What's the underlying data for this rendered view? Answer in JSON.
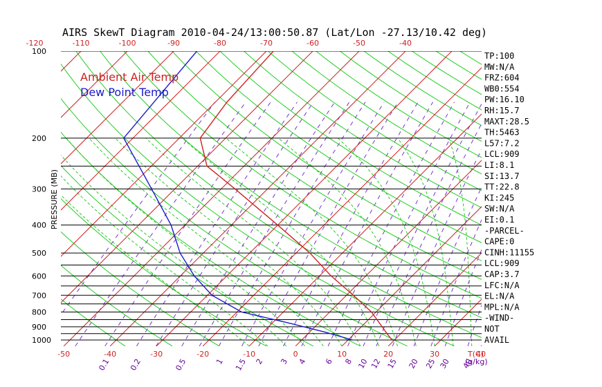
{
  "chart_data": {
    "type": "line",
    "title": "AIRS SkewT Diagram 2010-04-24/13:00:50.87 (Lat/Lon -27.13/10.42 deg)",
    "ylabel": "PRESSURE (MB)",
    "xlabel_bottom": "T(C)",
    "mixing_ratio_unit": "(g/kg)",
    "legend": [
      {
        "name": "Ambient Air Temp",
        "color": "#cc2222"
      },
      {
        "name": "Dew Point Temp",
        "color": "#1a1acc"
      }
    ],
    "pressure_levels": [
      100,
      200,
      300,
      400,
      500,
      600,
      700,
      800,
      900,
      1000
    ],
    "pressure_range": [
      100,
      1050
    ],
    "bottom_temp_ticks": [
      -50,
      -40,
      -30,
      -20,
      -10,
      0,
      10,
      20,
      30,
      40
    ],
    "top_temp_ticks": [
      -120,
      -110,
      -100,
      -90,
      -80,
      -70,
      -60,
      -50,
      -40
    ],
    "mixing_ratio_ticks": [
      "0.1",
      "0.2",
      "0.5",
      "1",
      "1.5",
      "2",
      "3",
      "4",
      "6",
      "8",
      "10",
      "12",
      "15",
      "20",
      "25",
      "30",
      "40"
    ],
    "series": [
      {
        "name": "Ambient Air Temp",
        "color": "#cc2222",
        "points": [
          {
            "p": 100,
            "t": -68.5
          },
          {
            "p": 150,
            "t": -67.5
          },
          {
            "p": 200,
            "t": -65.5
          },
          {
            "p": 250,
            "t": -58.0
          },
          {
            "p": 300,
            "t": -47.0
          },
          {
            "p": 400,
            "t": -30.0
          },
          {
            "p": 500,
            "t": -17.0
          },
          {
            "p": 600,
            "t": -7.5
          },
          {
            "p": 700,
            "t": 1.5
          },
          {
            "p": 800,
            "t": 9.0
          },
          {
            "p": 900,
            "t": 14.5
          },
          {
            "p": 950,
            "t": 17.0
          },
          {
            "p": 1000,
            "t": 19.5
          }
        ]
      },
      {
        "name": "Dew Point Temp",
        "color": "#1a1acc",
        "points": [
          {
            "p": 100,
            "t": -85.0
          },
          {
            "p": 200,
            "t": -82.0
          },
          {
            "p": 300,
            "t": -65.0
          },
          {
            "p": 400,
            "t": -53.0
          },
          {
            "p": 500,
            "t": -45.0
          },
          {
            "p": 600,
            "t": -37.0
          },
          {
            "p": 700,
            "t": -29.0
          },
          {
            "p": 800,
            "t": -19.0
          },
          {
            "p": 870,
            "t": -7.0
          },
          {
            "p": 940,
            "t": 3.5
          },
          {
            "p": 1000,
            "t": 11.0
          }
        ]
      }
    ],
    "indices": [
      "TP:100",
      "MW:N/A",
      "FRZ:604",
      "WB0:554",
      "PW:16.10",
      "RH:15.7",
      "MAXT:28.5",
      "TH:5463",
      "L57:7.2",
      "LCL:909",
      "LI:8.1",
      "SI:13.7",
      "TT:22.8",
      "KI:245",
      "SW:N/A",
      "EI:0.1",
      "-PARCEL-",
      "CAPE:0",
      "CINH:11155",
      "LCL:909",
      "CAP:3.7",
      "LFC:N/A",
      "EL:N/A",
      "MPL:N/A",
      "-WIND-",
      "NOT",
      "AVAIL"
    ]
  }
}
